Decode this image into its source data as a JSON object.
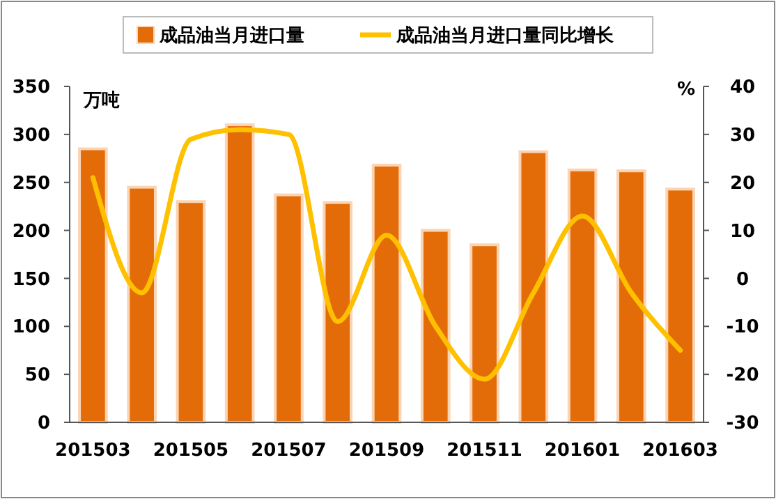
{
  "chart_data": {
    "type": "bar",
    "categories": [
      "201503",
      null,
      "201505",
      null,
      "201507",
      null,
      "201509",
      null,
      "201511",
      null,
      "201601",
      null,
      "201603"
    ],
    "ylabel": "万吨",
    "y2label": "%",
    "series": [
      {
        "name": "成品油当月进口量",
        "color": "#e36c09",
        "values": [
          285,
          245,
          230,
          310,
          237,
          229,
          268,
          200,
          185,
          282,
          263,
          262,
          243
        ]
      },
      {
        "name": "成品油当月进口量同比增长",
        "type": "line",
        "axis": "y2",
        "color": "#ffc000",
        "values": [
          21,
          -3,
          29,
          31,
          30,
          -9,
          9,
          -10,
          -21,
          -3,
          13,
          -3,
          -15
        ]
      }
    ],
    "ylim": [
      0,
      350
    ],
    "yticks": [
      0,
      50,
      100,
      150,
      200,
      250,
      300,
      350
    ],
    "y2lim": [
      -30,
      40
    ],
    "y2ticks": [
      -30,
      -20,
      -10,
      0,
      10,
      20,
      30,
      40
    ],
    "grid": false,
    "legend": "top",
    "marker": "none",
    "line_style": "solid"
  }
}
